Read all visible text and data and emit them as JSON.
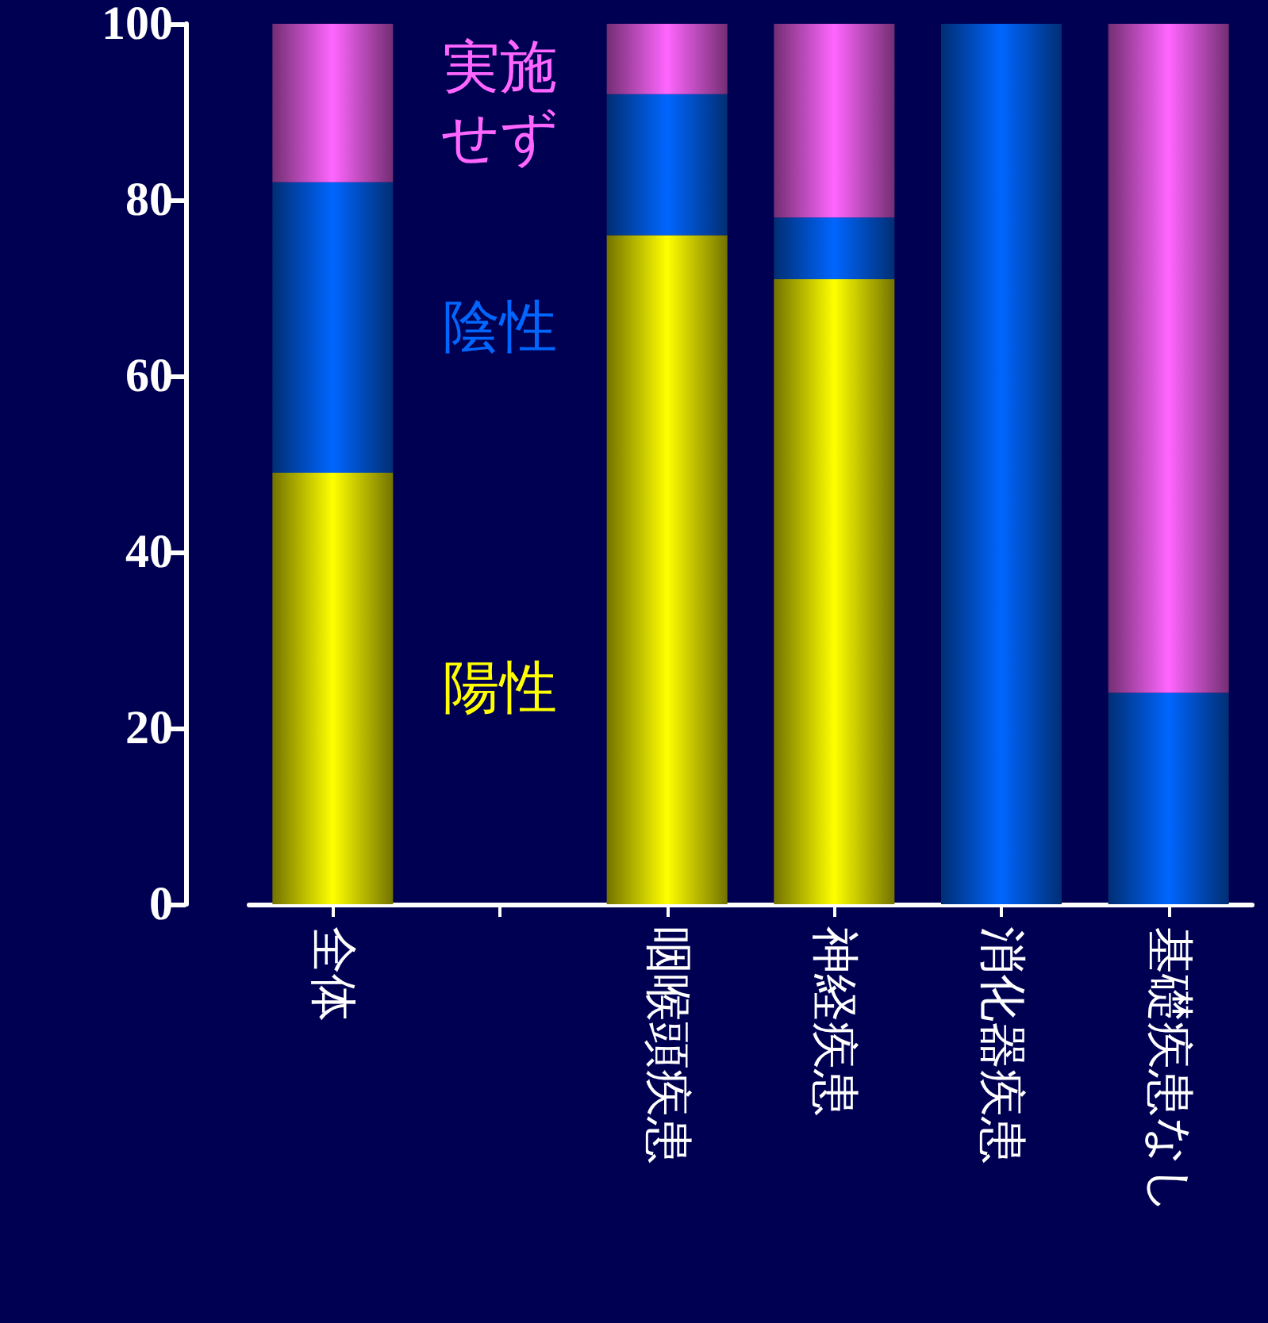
{
  "chart_data": {
    "type": "bar",
    "stacked": true,
    "categories": [
      "全体",
      null,
      "咽喉頭疾患",
      "神経疾患",
      "消化器疾患",
      "基礎疾患なし"
    ],
    "series": [
      {
        "name": "陽性",
        "color": "#ffff00",
        "values": [
          49,
          null,
          76,
          71,
          0,
          0
        ]
      },
      {
        "name": "陰性",
        "color": "#0066ff",
        "values": [
          33,
          null,
          16,
          7,
          100,
          24
        ]
      },
      {
        "name": "実施せず",
        "color": "#ff66ff",
        "values": [
          18,
          null,
          8,
          22,
          0,
          76
        ]
      }
    ],
    "ylim": [
      0,
      100
    ],
    "yticks": [
      0,
      20,
      40,
      60,
      80,
      100
    ],
    "grid": false,
    "legend": false
  }
}
